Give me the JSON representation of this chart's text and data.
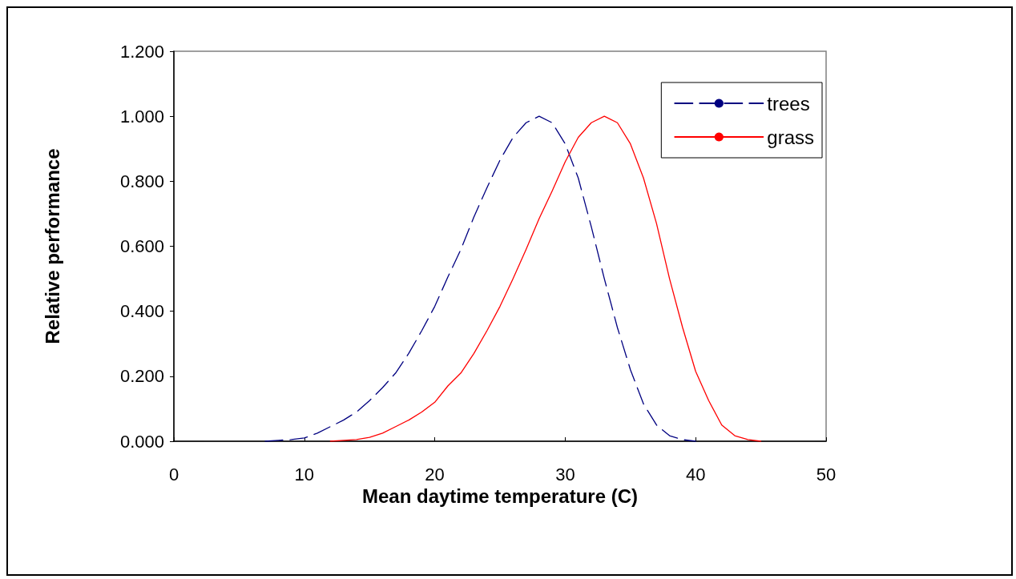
{
  "chart_data": {
    "type": "line",
    "xlabel": "Mean daytime temperature (C)",
    "ylabel": "Relative performance",
    "xlim": [
      0,
      50
    ],
    "xticks": [
      0,
      10,
      20,
      30,
      40,
      50
    ],
    "ylim": [
      0,
      1.2
    ],
    "yticks": [
      {
        "value": 0,
        "label": "0.000"
      },
      {
        "value": 0.2,
        "label": "0.200"
      },
      {
        "value": 0.4,
        "label": "0.400"
      },
      {
        "value": 0.6,
        "label": "0.600"
      },
      {
        "value": 0.8,
        "label": "0.800"
      },
      {
        "value": 1,
        "label": "1.000"
      },
      {
        "value": 1.2,
        "label": "1.200"
      }
    ],
    "grid": false,
    "legend": "top right",
    "marker": "none",
    "series": [
      {
        "name": "trees",
        "color": "#000080",
        "line_style": "dashed",
        "x": [
          7,
          8,
          9,
          10,
          11,
          12,
          13,
          14,
          15,
          16,
          17,
          18,
          19,
          20,
          21,
          22,
          23,
          24,
          25,
          26,
          27,
          28,
          29,
          30,
          31,
          32,
          33,
          34,
          35,
          36,
          37,
          38,
          39,
          40
        ],
        "values": [
          0,
          0.003,
          0.005,
          0.01,
          0.025,
          0.045,
          0.065,
          0.09,
          0.125,
          0.165,
          0.21,
          0.27,
          0.34,
          0.415,
          0.505,
          0.59,
          0.69,
          0.78,
          0.865,
          0.935,
          0.98,
          1.0,
          0.98,
          0.915,
          0.81,
          0.66,
          0.5,
          0.35,
          0.22,
          0.115,
          0.05,
          0.017,
          0.005,
          0
        ]
      },
      {
        "name": "grass",
        "color": "#ff0000",
        "line_style": "solid",
        "x": [
          12,
          13,
          14,
          15,
          16,
          17,
          18,
          19,
          20,
          21,
          22,
          23,
          24,
          25,
          26,
          27,
          28,
          29,
          30,
          31,
          32,
          33,
          34,
          35,
          36,
          37,
          38,
          39,
          40,
          41,
          42,
          43,
          44,
          45
        ],
        "values": [
          0,
          0.003,
          0.005,
          0.012,
          0.025,
          0.045,
          0.065,
          0.09,
          0.12,
          0.17,
          0.21,
          0.27,
          0.34,
          0.415,
          0.5,
          0.59,
          0.685,
          0.77,
          0.86,
          0.935,
          0.98,
          1.0,
          0.98,
          0.915,
          0.81,
          0.67,
          0.5,
          0.35,
          0.215,
          0.125,
          0.05,
          0.017,
          0.005,
          0
        ]
      }
    ]
  }
}
